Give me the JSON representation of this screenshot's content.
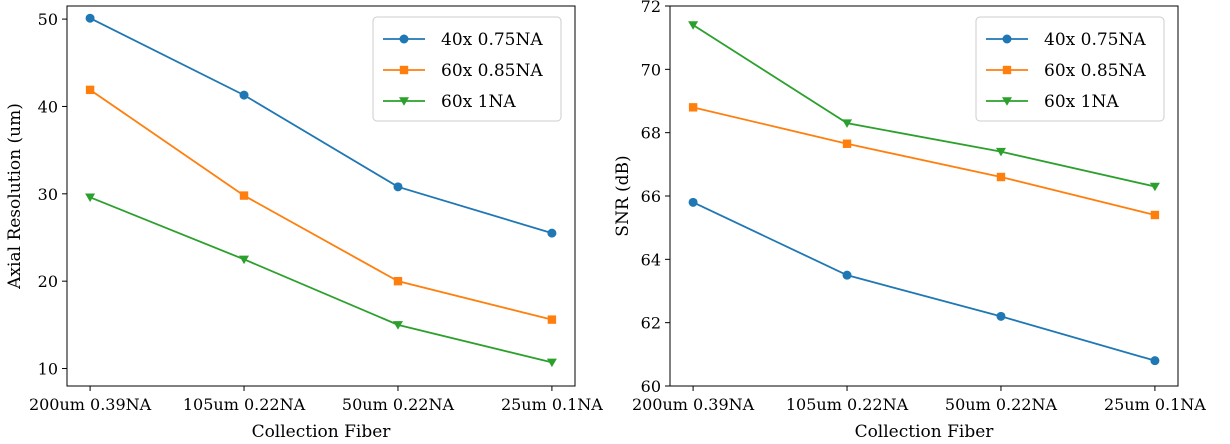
{
  "chart_data": [
    {
      "type": "line",
      "title": "",
      "xlabel": "Collection Fiber",
      "ylabel": "Axial Resolution (um)",
      "categories": [
        "200um 0.39NA",
        "105um 0.22NA",
        "50um 0.22NA",
        "25um 0.1NA"
      ],
      "ylim": [
        8,
        51.5
      ],
      "yticks": [
        10,
        20,
        30,
        40,
        50
      ],
      "grid": false,
      "legend_position": "top-right",
      "series": [
        {
          "name": "40x 0.75NA",
          "color": "#1f77b4",
          "marker": "circle",
          "values": [
            50.1,
            41.3,
            30.8,
            25.5
          ]
        },
        {
          "name": "60x 0.85NA",
          "color": "#ff7f0e",
          "marker": "square",
          "values": [
            41.9,
            29.8,
            20.0,
            15.6
          ]
        },
        {
          "name": "60x 1NA",
          "color": "#2ca02c",
          "marker": "triangle-down",
          "values": [
            29.6,
            22.5,
            15.0,
            10.7
          ]
        }
      ]
    },
    {
      "type": "line",
      "title": "",
      "xlabel": "Collection Fiber",
      "ylabel": "SNR (dB)",
      "categories": [
        "200um 0.39NA",
        "105um 0.22NA",
        "50um 0.22NA",
        "25um 0.1NA"
      ],
      "ylim": [
        60,
        72
      ],
      "yticks": [
        60,
        62,
        64,
        66,
        68,
        70,
        72
      ],
      "grid": false,
      "legend_position": "top-right",
      "series": [
        {
          "name": "40x 0.75NA",
          "color": "#1f77b4",
          "marker": "circle",
          "values": [
            65.8,
            63.5,
            62.2,
            60.8
          ]
        },
        {
          "name": "60x 0.85NA",
          "color": "#ff7f0e",
          "marker": "square",
          "values": [
            68.8,
            67.65,
            66.6,
            65.4
          ]
        },
        {
          "name": "60x 1NA",
          "color": "#2ca02c",
          "marker": "triangle-down",
          "values": [
            71.4,
            68.3,
            67.4,
            66.3
          ]
        }
      ]
    }
  ]
}
